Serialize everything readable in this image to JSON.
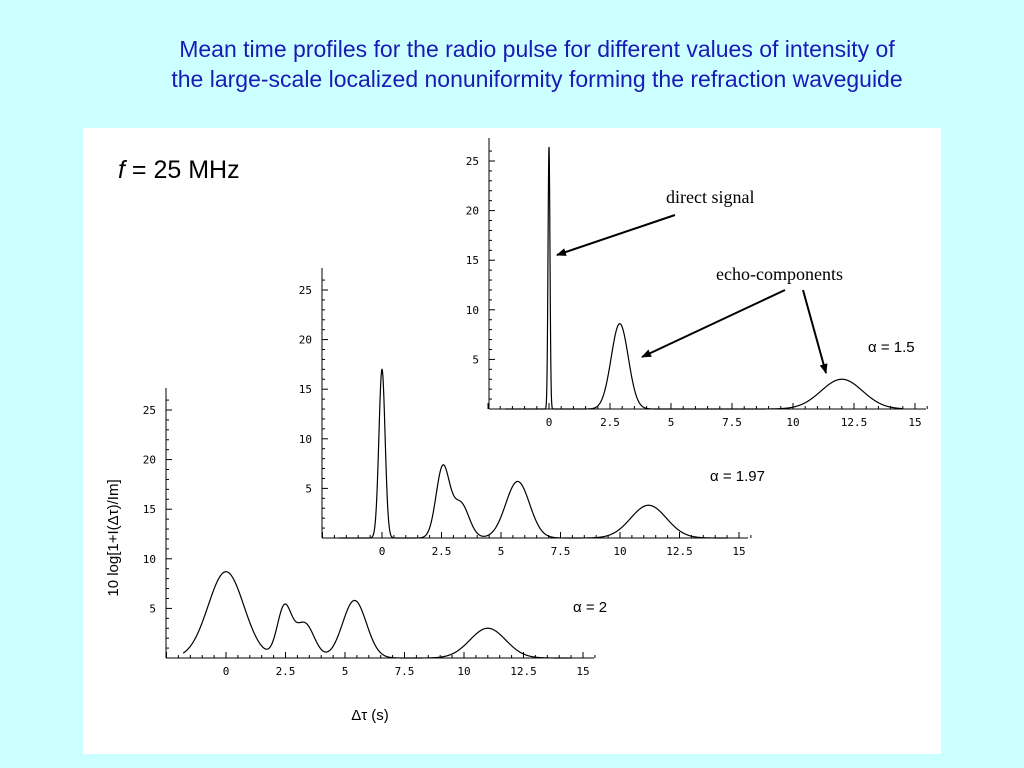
{
  "title": {
    "line1": "Mean time profiles for the radio pulse for different values of intensity of",
    "line2": "the large-scale localized nonuniformity forming the refraction waveguide"
  },
  "frequency": {
    "symbol": "f",
    "rest": " = 25 MHz"
  },
  "annotations": {
    "direct": "direct signal",
    "echo": "echo-components"
  },
  "colors": {
    "background": "#ccffff",
    "title": "#1a1ab4",
    "panel": "#ffffff",
    "line": "#000000"
  },
  "chart_data": [
    {
      "type": "line",
      "alpha_label": "α = 1.5",
      "xticks": [
        "0",
        "2.5",
        "5",
        "7.5",
        "10",
        "12.5",
        "15"
      ],
      "yticks": [
        "5",
        "10",
        "15",
        "20",
        "25"
      ],
      "xlim": [
        -2.5,
        15.5
      ],
      "ylim": [
        0,
        26
      ],
      "peaks": [
        {
          "x": 0.0,
          "y": 26.5,
          "width": 0.04
        },
        {
          "x": 2.9,
          "y": 8.6,
          "width": 0.35
        },
        {
          "x": 12.0,
          "y": 3.0,
          "width": 0.85
        }
      ]
    },
    {
      "type": "line",
      "alpha_label": "α = 1.97",
      "xticks": [
        "0",
        "2.5",
        "5",
        "7.5",
        "10",
        "12.5",
        "15"
      ],
      "yticks": [
        "5",
        "10",
        "15",
        "20",
        "25"
      ],
      "xlim": [
        -2.5,
        15.5
      ],
      "ylim": [
        0,
        26
      ],
      "peaks": [
        {
          "x": 0.0,
          "y": 17.0,
          "width": 0.13
        },
        {
          "x": 2.55,
          "y": 7.0,
          "width": 0.28
        },
        {
          "x": 3.3,
          "y": 3.5,
          "width": 0.35
        },
        {
          "x": 5.7,
          "y": 5.7,
          "width": 0.5
        },
        {
          "x": 11.2,
          "y": 3.3,
          "width": 0.75
        }
      ]
    },
    {
      "type": "line",
      "alpha_label": "α = 2",
      "xlabel": "Δτ (s)",
      "ylabel": "10 log[1+I(Δτ)/Im]",
      "xticks": [
        "0",
        "2.5",
        "5",
        "7.5",
        "10",
        "12.5",
        "15"
      ],
      "yticks": [
        "5",
        "10",
        "15",
        "20",
        "25"
      ],
      "xlim": [
        -2.5,
        15.5
      ],
      "ylim": [
        0,
        26
      ],
      "peaks": [
        {
          "x": 0.0,
          "y": 8.7,
          "width": 0.75
        },
        {
          "x": 2.45,
          "y": 5.0,
          "width": 0.3
        },
        {
          "x": 3.3,
          "y": 3.5,
          "width": 0.4
        },
        {
          "x": 5.4,
          "y": 5.8,
          "width": 0.5
        },
        {
          "x": 11.0,
          "y": 3.0,
          "width": 0.75
        }
      ]
    }
  ]
}
